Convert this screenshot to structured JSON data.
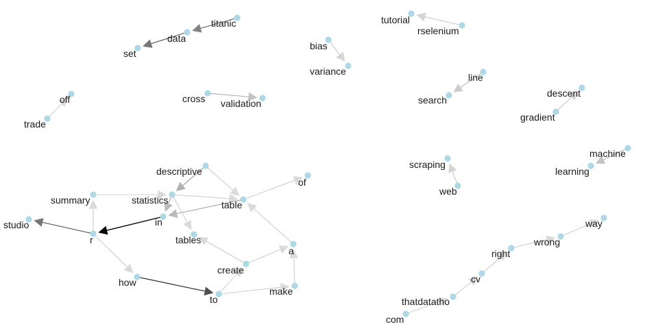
{
  "graph": {
    "node_color": "#add8e6",
    "label_color": "#1a1a1a",
    "nodes": [
      {
        "id": "titanic",
        "label": "titanic"
      },
      {
        "id": "data",
        "label": "data"
      },
      {
        "id": "set",
        "label": "set"
      },
      {
        "id": "trade",
        "label": "trade"
      },
      {
        "id": "off",
        "label": "off"
      },
      {
        "id": "cross",
        "label": "cross"
      },
      {
        "id": "validation",
        "label": "validation"
      },
      {
        "id": "bias",
        "label": "bias"
      },
      {
        "id": "variance",
        "label": "variance"
      },
      {
        "id": "tutorial",
        "label": "tutorial"
      },
      {
        "id": "rselenium",
        "label": "rselenium"
      },
      {
        "id": "line",
        "label": "line"
      },
      {
        "id": "search",
        "label": "search"
      },
      {
        "id": "descent",
        "label": "descent"
      },
      {
        "id": "gradient",
        "label": "gradient"
      },
      {
        "id": "scraping",
        "label": "scraping"
      },
      {
        "id": "web",
        "label": "web"
      },
      {
        "id": "machine",
        "label": "machine"
      },
      {
        "id": "learning",
        "label": "learning"
      },
      {
        "id": "way",
        "label": "way"
      },
      {
        "id": "wrong",
        "label": "wrong"
      },
      {
        "id": "right",
        "label": "right"
      },
      {
        "id": "cv",
        "label": "cv"
      },
      {
        "id": "thatdatatho",
        "label": "thatdatatho"
      },
      {
        "id": "com",
        "label": "com"
      },
      {
        "id": "descriptive",
        "label": "descriptive"
      },
      {
        "id": "summary",
        "label": "summary"
      },
      {
        "id": "statistics",
        "label": "statistics"
      },
      {
        "id": "table",
        "label": "table"
      },
      {
        "id": "of",
        "label": "of"
      },
      {
        "id": "studio",
        "label": "studio"
      },
      {
        "id": "r",
        "label": "r"
      },
      {
        "id": "in",
        "label": "in"
      },
      {
        "id": "tables",
        "label": "tables"
      },
      {
        "id": "create",
        "label": "create"
      },
      {
        "id": "a",
        "label": "a"
      },
      {
        "id": "how",
        "label": "how"
      },
      {
        "id": "to",
        "label": "to"
      },
      {
        "id": "make",
        "label": "make"
      }
    ],
    "edges": [
      {
        "from": "titanic",
        "to": "data",
        "strength": 0.55
      },
      {
        "from": "data",
        "to": "set",
        "strength": 0.6
      },
      {
        "from": "trade",
        "to": "off",
        "strength": 0.12
      },
      {
        "from": "cross",
        "to": "validation",
        "strength": 0.25
      },
      {
        "from": "bias",
        "to": "variance",
        "strength": 0.15
      },
      {
        "from": "rselenium",
        "to": "tutorial",
        "strength": 0.15
      },
      {
        "from": "line",
        "to": "search",
        "strength": 0.2
      },
      {
        "from": "gradient",
        "to": "descent",
        "strength": 0.15
      },
      {
        "from": "web",
        "to": "scraping",
        "strength": 0.15
      },
      {
        "from": "machine",
        "to": "learning",
        "strength": 0.25
      },
      {
        "from": "wrong",
        "to": "way",
        "strength": 0.12
      },
      {
        "from": "right",
        "to": "wrong",
        "strength": 0.12
      },
      {
        "from": "cv",
        "to": "right",
        "strength": 0.12
      },
      {
        "from": "thatdatatho",
        "to": "cv",
        "strength": 0.12
      },
      {
        "from": "com",
        "to": "thatdatatho",
        "strength": 0.12
      },
      {
        "from": "descriptive",
        "to": "statistics",
        "strength": 0.35
      },
      {
        "from": "descriptive",
        "to": "table",
        "strength": 0.12
      },
      {
        "from": "summary",
        "to": "statistics",
        "strength": 0.12
      },
      {
        "from": "r",
        "to": "summary",
        "strength": 0.12
      },
      {
        "from": "table",
        "to": "of",
        "strength": 0.12
      },
      {
        "from": "table",
        "to": "in",
        "strength": 0.3
      },
      {
        "from": "statistics",
        "to": "in",
        "strength": 0.3
      },
      {
        "from": "statistics",
        "to": "tables",
        "strength": 0.12
      },
      {
        "from": "statistics",
        "to": "table",
        "strength": 0.12
      },
      {
        "from": "r",
        "to": "studio",
        "strength": 0.6
      },
      {
        "from": "in",
        "to": "r",
        "strength": 1.0
      },
      {
        "from": "r",
        "to": "how",
        "strength": 0.12
      },
      {
        "from": "how",
        "to": "to",
        "strength": 0.75
      },
      {
        "from": "to",
        "to": "create",
        "strength": 0.12
      },
      {
        "from": "to",
        "to": "make",
        "strength": 0.12
      },
      {
        "from": "make",
        "to": "a",
        "strength": 0.12
      },
      {
        "from": "create",
        "to": "a",
        "strength": 0.12
      },
      {
        "from": "create",
        "to": "tables",
        "strength": 0.12
      },
      {
        "from": "a",
        "to": "table",
        "strength": 0.12
      }
    ]
  }
}
